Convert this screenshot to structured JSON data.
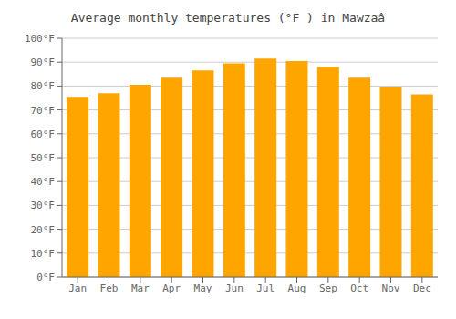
{
  "chart_data": {
    "type": "bar",
    "title": "Average monthly temperatures (°F ) in Mawzaâ",
    "categories": [
      "Jan",
      "Feb",
      "Mar",
      "Apr",
      "May",
      "Jun",
      "Jul",
      "Aug",
      "Sep",
      "Oct",
      "Nov",
      "Dec"
    ],
    "values": [
      75.5,
      77.0,
      80.5,
      83.5,
      86.5,
      89.5,
      91.5,
      90.5,
      88.0,
      83.5,
      79.5,
      76.5
    ],
    "color": "#FFA500",
    "ylim": [
      0,
      100
    ],
    "yticks": [
      {
        "value": 0,
        "label": "0°F"
      },
      {
        "value": 10,
        "label": "10°F"
      },
      {
        "value": 20,
        "label": "20°F"
      },
      {
        "value": 30,
        "label": "30°F"
      },
      {
        "value": 40,
        "label": "40°F"
      },
      {
        "value": 50,
        "label": "50°F"
      },
      {
        "value": 60,
        "label": "60°F"
      },
      {
        "value": 70,
        "label": "70°F"
      },
      {
        "value": 80,
        "label": "80°F"
      },
      {
        "value": 90,
        "label": "90°F"
      },
      {
        "value": 100,
        "label": "100°F"
      }
    ],
    "grid": true
  }
}
